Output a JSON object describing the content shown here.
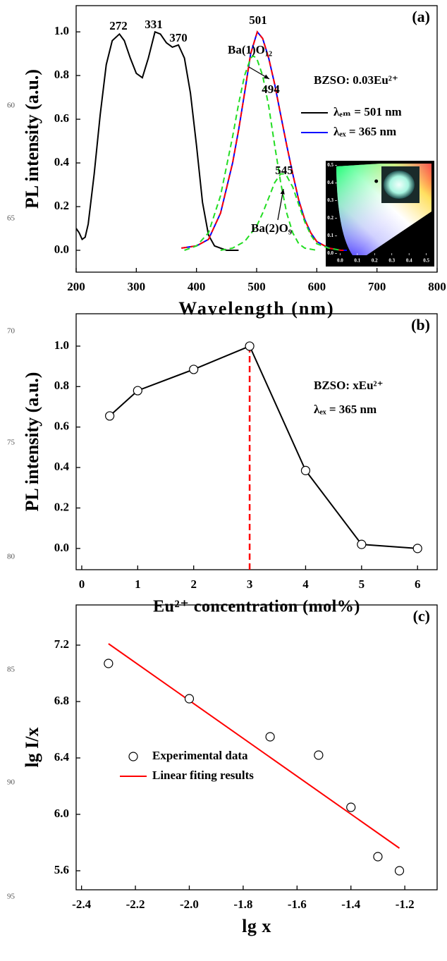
{
  "margin_line_numbers": [
    "60",
    "65",
    "70",
    "75",
    "80",
    "85",
    "90",
    "95"
  ],
  "chart_data": [
    {
      "type": "line",
      "panel_label": "(a)",
      "xlabel": "Wavelength (nm)",
      "ylabel": "PL intensity (a.u.)",
      "xlim": [
        200,
        800
      ],
      "ylim": [
        -0.1,
        1.12
      ],
      "xticks": [
        200,
        300,
        400,
        500,
        600,
        700,
        800
      ],
      "yticks": [
        {
          "value": 0,
          "label": "0.0"
        },
        {
          "value": 0.2,
          "label": "0.2"
        },
        {
          "value": 0.4,
          "label": "0.4"
        },
        {
          "value": 0.6,
          "label": "0.6"
        },
        {
          "value": 0.8,
          "label": "0.8"
        },
        {
          "value": 1,
          "label": "1.0"
        }
      ],
      "legend": "right",
      "series": [
        {
          "name": "λₑₘ = 501 nm",
          "color": "#000000",
          "mode": "lines",
          "x": [
            200,
            205,
            210,
            215,
            220,
            230,
            240,
            250,
            260,
            272,
            280,
            290,
            300,
            310,
            320,
            331,
            340,
            350,
            360,
            370,
            380,
            390,
            400,
            410,
            420,
            430,
            440,
            450,
            460,
            470
          ],
          "values": [
            0.1,
            0.08,
            0.05,
            0.06,
            0.12,
            0.35,
            0.62,
            0.85,
            0.96,
            0.99,
            0.96,
            0.88,
            0.81,
            0.79,
            0.88,
            1.0,
            0.99,
            0.95,
            0.93,
            0.94,
            0.88,
            0.72,
            0.48,
            0.22,
            0.07,
            0.02,
            0.01,
            0.0,
            0.0,
            0.0
          ]
        },
        {
          "name": "λₑₓ = 365 nm",
          "color": "#0000ff",
          "mode": "lines",
          "x": [
            375,
            400,
            420,
            440,
            460,
            470,
            480,
            490,
            501,
            510,
            520,
            530,
            540,
            550,
            560,
            570,
            580,
            590,
            600,
            620,
            640,
            650
          ],
          "values": [
            0.01,
            0.02,
            0.05,
            0.17,
            0.4,
            0.55,
            0.72,
            0.9,
            1.0,
            0.97,
            0.88,
            0.76,
            0.62,
            0.48,
            0.35,
            0.23,
            0.14,
            0.08,
            0.04,
            0.01,
            0.0,
            0.0
          ]
        },
        {
          "color": "#ff0000",
          "mode": "lines",
          "dashed": true,
          "x": [
            375,
            400,
            420,
            440,
            460,
            470,
            480,
            490,
            501,
            510,
            520,
            530,
            540,
            550,
            560,
            570,
            580,
            590,
            600,
            620,
            640,
            650
          ],
          "values": [
            0.01,
            0.02,
            0.05,
            0.17,
            0.4,
            0.55,
            0.72,
            0.9,
            1.0,
            0.97,
            0.88,
            0.76,
            0.62,
            0.48,
            0.35,
            0.23,
            0.14,
            0.08,
            0.04,
            0.01,
            0.0,
            0.0
          ]
        },
        {
          "color": "#22dd22",
          "mode": "lines",
          "dashed": true,
          "x": [
            380,
            400,
            420,
            440,
            460,
            470,
            480,
            490,
            494,
            500,
            510,
            520,
            530,
            540,
            550,
            560,
            570,
            580,
            600
          ],
          "values": [
            0.0,
            0.02,
            0.08,
            0.25,
            0.52,
            0.67,
            0.8,
            0.88,
            0.89,
            0.88,
            0.8,
            0.66,
            0.48,
            0.31,
            0.17,
            0.08,
            0.03,
            0.01,
            0.0
          ]
        },
        {
          "color": "#22dd22",
          "mode": "lines",
          "dashed": true,
          "x": [
            440,
            460,
            480,
            500,
            510,
            520,
            530,
            540,
            545,
            550,
            560,
            570,
            580,
            590,
            600,
            620,
            640
          ],
          "values": [
            0.0,
            0.01,
            0.04,
            0.11,
            0.17,
            0.24,
            0.31,
            0.35,
            0.35,
            0.34,
            0.29,
            0.21,
            0.13,
            0.07,
            0.03,
            0.01,
            0.0
          ]
        }
      ],
      "annotations": [
        "272",
        "331",
        "370",
        "501",
        "494",
        "545",
        "Ba(1)O₁₂",
        "Ba(2)O₉",
        "BZSO: 0.03Eu²⁺"
      ],
      "inset": {
        "xlim": [
          -0.03,
          0.53
        ],
        "ylim": [
          -0.01,
          0.51
        ],
        "xticks": [
          {
            "value": 0,
            "label": "0.0"
          },
          {
            "value": 0.1,
            "label": "0.1"
          },
          {
            "value": 0.2,
            "label": "0.2"
          },
          {
            "value": 0.3,
            "label": "0.3"
          },
          {
            "value": 0.4,
            "label": "0.4"
          },
          {
            "value": 0.5,
            "label": "0.5"
          }
        ],
        "yticks": [
          {
            "value": 0,
            "label": "0.0"
          },
          {
            "value": 0.1,
            "label": "0.1"
          },
          {
            "value": 0.2,
            "label": "0.2"
          },
          {
            "value": 0.3,
            "label": "0.3"
          },
          {
            "value": 0.4,
            "label": "0.4"
          },
          {
            "value": 0.5,
            "label": "0.5"
          }
        ],
        "point": {
          "x": 0.21,
          "y": 0.41
        }
      }
    },
    {
      "type": "line",
      "panel_label": "(b)",
      "xlabel": "Eu²⁺ concentration (mol%)",
      "ylabel": "PL intensity (a.u.)",
      "xlim": [
        -0.1,
        6.35
      ],
      "ylim": [
        -0.105,
        1.16
      ],
      "xticks": [
        0,
        1,
        2,
        3,
        4,
        5,
        6
      ],
      "yticks": [
        {
          "value": 0,
          "label": "0.0"
        },
        {
          "value": 0.2,
          "label": "0.2"
        },
        {
          "value": 0.4,
          "label": "0.4"
        },
        {
          "value": 0.6,
          "label": "0.6"
        },
        {
          "value": 0.8,
          "label": "0.8"
        },
        {
          "value": 1,
          "label": "1.0"
        }
      ],
      "series": [
        {
          "color": "#000000",
          "mode": "lines+markers",
          "x": [
            0.5,
            1,
            2,
            3,
            4,
            5,
            6
          ],
          "values": [
            0.655,
            0.78,
            0.885,
            1.0,
            0.385,
            0.02,
            0.0
          ]
        }
      ],
      "vline": {
        "x": 3,
        "color": "#ff0000"
      },
      "annotations": [
        "BZSO: xEu²⁺",
        "λₑₓ = 365 nm"
      ]
    },
    {
      "type": "scatter",
      "panel_label": "(c)",
      "xlabel": "lg x",
      "ylabel": "lg I/x",
      "xlim": [
        -2.42,
        -1.08
      ],
      "ylim": [
        5.465,
        7.485
      ],
      "xticks": [
        -2.4,
        -2.2,
        {
          "value": -2.0,
          "label": "-2.0"
        },
        -1.8,
        -1.6,
        -1.4,
        -1.2
      ],
      "yticks": [
        5.6,
        {
          "value": 6.0,
          "label": "6.0"
        },
        6.4,
        6.8,
        7.2
      ],
      "legend": "left",
      "series": [
        {
          "name": "Experimental data",
          "color": "#000000",
          "mode": "markers",
          "x": [
            -2.3,
            -2.0,
            -1.7,
            -1.52,
            -1.4,
            -1.3,
            -1.22
          ],
          "values": [
            7.07,
            6.82,
            6.55,
            6.42,
            6.05,
            5.7,
            5.6
          ]
        },
        {
          "name": "Linear fiting results",
          "color": "#ff0000",
          "mode": "lines",
          "x": [
            -2.3,
            -1.22
          ],
          "values": [
            7.21,
            5.76
          ]
        }
      ],
      "annotations": []
    }
  ]
}
